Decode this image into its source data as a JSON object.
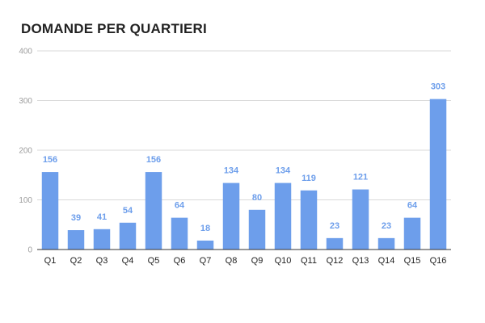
{
  "chart_data": {
    "type": "bar",
    "title": "DOMANDE PER QUARTIERI",
    "xlabel": "",
    "ylabel": "",
    "categories": [
      "Q1",
      "Q2",
      "Q3",
      "Q4",
      "Q5",
      "Q6",
      "Q7",
      "Q8",
      "Q9",
      "Q10",
      "Q11",
      "Q12",
      "Q13",
      "Q14",
      "Q15",
      "Q16"
    ],
    "values": [
      156,
      39,
      41,
      54,
      156,
      64,
      18,
      134,
      80,
      134,
      119,
      23,
      121,
      23,
      64,
      303
    ],
    "ylim": [
      0,
      400
    ],
    "yticks": [
      0,
      100,
      200,
      300,
      400
    ],
    "grid": true,
    "data_labels": true,
    "legend": "none",
    "bar_color": "#6d9eeb",
    "gridline_color": "#d9d9d9"
  }
}
